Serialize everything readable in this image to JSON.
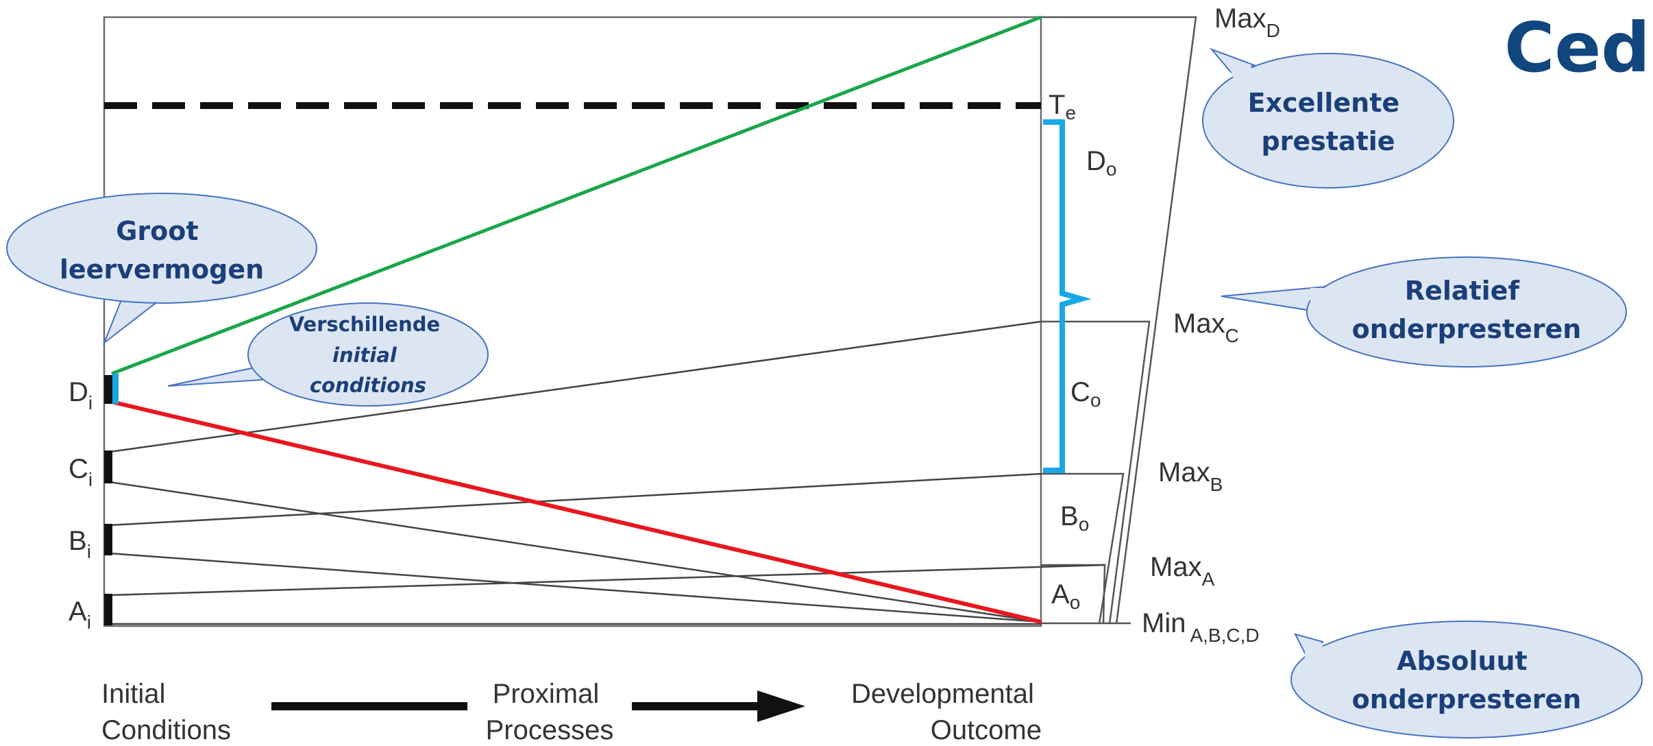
{
  "logo": {
    "text": "Cedi"
  },
  "axis_labels": {
    "initial": [
      "Initial",
      "Conditions"
    ],
    "proximal": [
      "Proximal",
      "Processes"
    ],
    "outcome": [
      "Developmental",
      "Outcome"
    ]
  },
  "initial_labels": {
    "D": {
      "main": "D",
      "sub": "i"
    },
    "C": {
      "main": "C",
      "sub": "i"
    },
    "B": {
      "main": "B",
      "sub": "i"
    },
    "A": {
      "main": "A",
      "sub": "i"
    }
  },
  "outcome_labels": {
    "Te": {
      "main": "T",
      "sub": "e"
    },
    "Do": {
      "main": "D",
      "sub": "o"
    },
    "Co": {
      "main": "C",
      "sub": "o"
    },
    "Bo": {
      "main": "B",
      "sub": "o"
    },
    "Ao": {
      "main": "A",
      "sub": "o"
    }
  },
  "max_labels": {
    "D": {
      "main": "Max",
      "sub": "D"
    },
    "C": {
      "main": "Max",
      "sub": "C"
    },
    "B": {
      "main": "Max",
      "sub": "B"
    },
    "A": {
      "main": "Max",
      "sub": "A"
    },
    "Min": {
      "main": "Min",
      "sub": "A,B,C,D"
    }
  },
  "callouts": {
    "groot": [
      "Groot",
      "leervermogen"
    ],
    "verschillende": [
      "Verschillende",
      "initial",
      "conditions"
    ],
    "excellente": [
      "Excellente",
      "prestatie"
    ],
    "relatief": [
      "Relatief",
      "onderpresteren"
    ],
    "absoluut": [
      "Absoluut",
      "onderpresteren"
    ]
  },
  "colors": {
    "green_line": "#1aa64a",
    "red_line": "#e8171d",
    "bracket": "#1aa7e8",
    "bubble_fill": "#dce6f2",
    "bubble_stroke": "#4472c4",
    "bubble_text": "#1b3f7a",
    "logo": "#12467e"
  }
}
